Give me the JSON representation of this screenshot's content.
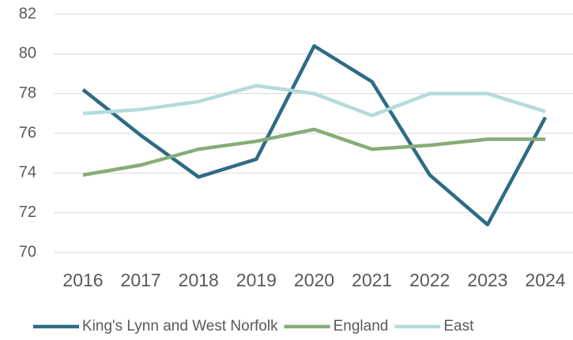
{
  "chart_data": {
    "type": "line",
    "categories": [
      "2016",
      "2017",
      "2018",
      "2019",
      "2020",
      "2021",
      "2022",
      "2023",
      "2024"
    ],
    "series": [
      {
        "name": "King's Lynn and West Norfolk",
        "color": "#2e6b85",
        "values": [
          78.2,
          75.9,
          73.8,
          74.7,
          80.4,
          78.6,
          73.9,
          71.4,
          76.8
        ]
      },
      {
        "name": "England",
        "color": "#86ad76",
        "values": [
          73.9,
          74.4,
          75.2,
          75.6,
          76.2,
          75.2,
          75.4,
          75.7,
          75.7
        ]
      },
      {
        "name": "East",
        "color": "#b3dbd9",
        "values": [
          77.0,
          77.2,
          77.6,
          78.4,
          78.0,
          76.9,
          78.0,
          78.0,
          77.1
        ]
      }
    ],
    "ylim": [
      70,
      82
    ],
    "yticks": [
      70,
      72,
      74,
      76,
      78,
      80,
      82
    ],
    "grid": true,
    "legend": "bottom"
  }
}
